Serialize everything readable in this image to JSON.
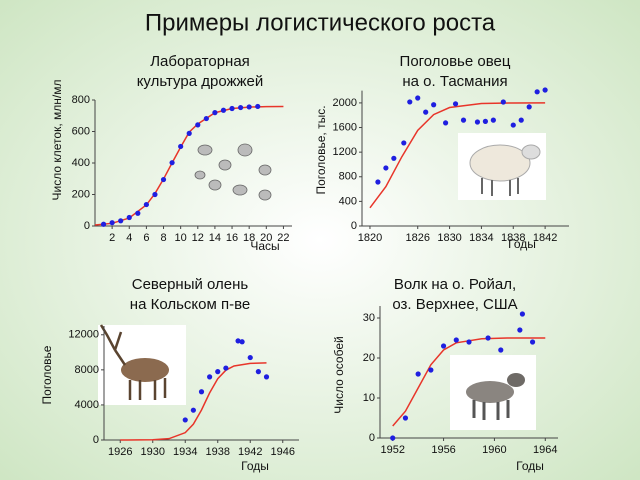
{
  "title": "Примеры логистического роста",
  "chart_data": [
    {
      "type": "scatter",
      "title": [
        "Лабораторная",
        "культура дрожжей"
      ],
      "ylabel": "Число клеток, млн/мл",
      "xlabel": "Часы",
      "xlim": [
        0,
        23
      ],
      "xticks": [
        2,
        4,
        6,
        8,
        10,
        12,
        14,
        16,
        18,
        20,
        22
      ],
      "ylim": [
        0,
        800
      ],
      "yticks": [
        0,
        200,
        400,
        600,
        800
      ],
      "series": [
        {
          "mode": "markers",
          "color": "#1f1fe0",
          "x": [
            1,
            2,
            3,
            4,
            5,
            6,
            7,
            8,
            9,
            10,
            11,
            12,
            13,
            14,
            15,
            16,
            17,
            18,
            19
          ],
          "values": [
            11,
            21,
            33,
            54,
            81,
            136,
            200,
            295,
            402,
            505,
            588,
            642,
            682,
            720,
            735,
            746,
            752,
            756,
            759
          ]
        },
        {
          "mode": "line",
          "color": "#e8352a",
          "x": [
            0,
            2,
            4,
            6,
            7,
            8,
            9,
            10,
            11,
            12,
            14,
            16,
            18,
            20,
            22
          ],
          "values": [
            6,
            17,
            51,
            134,
            206,
            298,
            401,
            501,
            596,
            648,
            719,
            746,
            755,
            758,
            759
          ]
        }
      ]
    },
    {
      "type": "scatter",
      "title": [
        "Поголовье овец",
        "на о. Тасмания"
      ],
      "ylabel": "Поголовье, тыс.",
      "xlabel": "Годы",
      "xlim": [
        1819,
        1845
      ],
      "xticks": [
        1820,
        1826,
        1830,
        1834,
        1838,
        1842
      ],
      "ylim": [
        0,
        2200
      ],
      "yticks": [
        0,
        400,
        800,
        1200,
        1600,
        2000
      ],
      "series": [
        {
          "mode": "markers",
          "color": "#1f1fe0",
          "x": [
            1821,
            1822,
            1823,
            1824.25,
            1825,
            1826,
            1827,
            1828,
            1829.5,
            1830.75,
            1831.75,
            1833.5,
            1834.5,
            1835.5,
            1836.75,
            1838,
            1839,
            1840,
            1841,
            1842
          ],
          "values": [
            715,
            943,
            1100,
            1350,
            2016,
            2080,
            1850,
            1970,
            1675,
            1985,
            1720,
            1690,
            1700,
            1720,
            2015,
            1640,
            1720,
            1935,
            2180,
            2210
          ]
        },
        {
          "mode": "line",
          "color": "#e8352a",
          "x": [
            1820,
            1822,
            1824,
            1826,
            1828,
            1830,
            1834,
            1838,
            1842
          ],
          "values": [
            296,
            641,
            1124,
            1554,
            1810,
            1925,
            1990,
            1999,
            2000
          ]
        }
      ]
    },
    {
      "type": "scatter",
      "title": [
        "Северный олень",
        "на Кольском п-ве"
      ],
      "ylabel": "Поголовье",
      "xlabel": "Годы",
      "xlim": [
        1924,
        1948
      ],
      "xticks": [
        1926,
        1930,
        1934,
        1938,
        1942,
        1946
      ],
      "ylim": [
        0,
        13000
      ],
      "yticks": [
        0,
        4000,
        8000,
        12000
      ],
      "series": [
        {
          "mode": "markers",
          "color": "#1f1fe0",
          "x": [
            1934,
            1935,
            1936,
            1937,
            1938,
            1939,
            1940.5,
            1941,
            1942,
            1943,
            1944
          ],
          "values": [
            2290,
            3400,
            5500,
            7200,
            7800,
            8200,
            11300,
            11200,
            9400,
            7800,
            7200
          ]
        },
        {
          "mode": "line",
          "color": "#e8352a",
          "x": [
            1926,
            1930,
            1932,
            1934,
            1935,
            1936,
            1937,
            1938,
            1939,
            1940,
            1942,
            1944
          ],
          "values": [
            1,
            25,
            151,
            839,
            1811,
            3424,
            5372,
            6990,
            7963,
            8437,
            8739,
            8790
          ]
        }
      ]
    },
    {
      "type": "scatter",
      "title": [
        "Волк на о. Ройал,",
        "оз. Верхнее, США"
      ],
      "ylabel": "Число особей",
      "xlabel": "Годы",
      "xlim": [
        1951,
        1965
      ],
      "xticks": [
        1952,
        1956,
        1960,
        1964
      ],
      "ylim": [
        0,
        33
      ],
      "yticks": [
        0,
        10,
        20,
        30
      ],
      "series": [
        {
          "mode": "markers",
          "color": "#1f1fe0",
          "x": [
            1952,
            1953,
            1954,
            1955,
            1956,
            1957,
            1958,
            1959.5,
            1960.5,
            1962,
            1962.2,
            1963
          ],
          "values": [
            0,
            5,
            16,
            17,
            23,
            24.5,
            24,
            25,
            22,
            27,
            31,
            24
          ]
        },
        {
          "mode": "line",
          "color": "#e8352a",
          "x": [
            1952,
            1953,
            1954,
            1955,
            1956,
            1957,
            1959,
            1961,
            1964
          ],
          "values": [
            3,
            6.7,
            12.5,
            18.3,
            22,
            23.8,
            24.8,
            25,
            25
          ]
        }
      ]
    }
  ]
}
